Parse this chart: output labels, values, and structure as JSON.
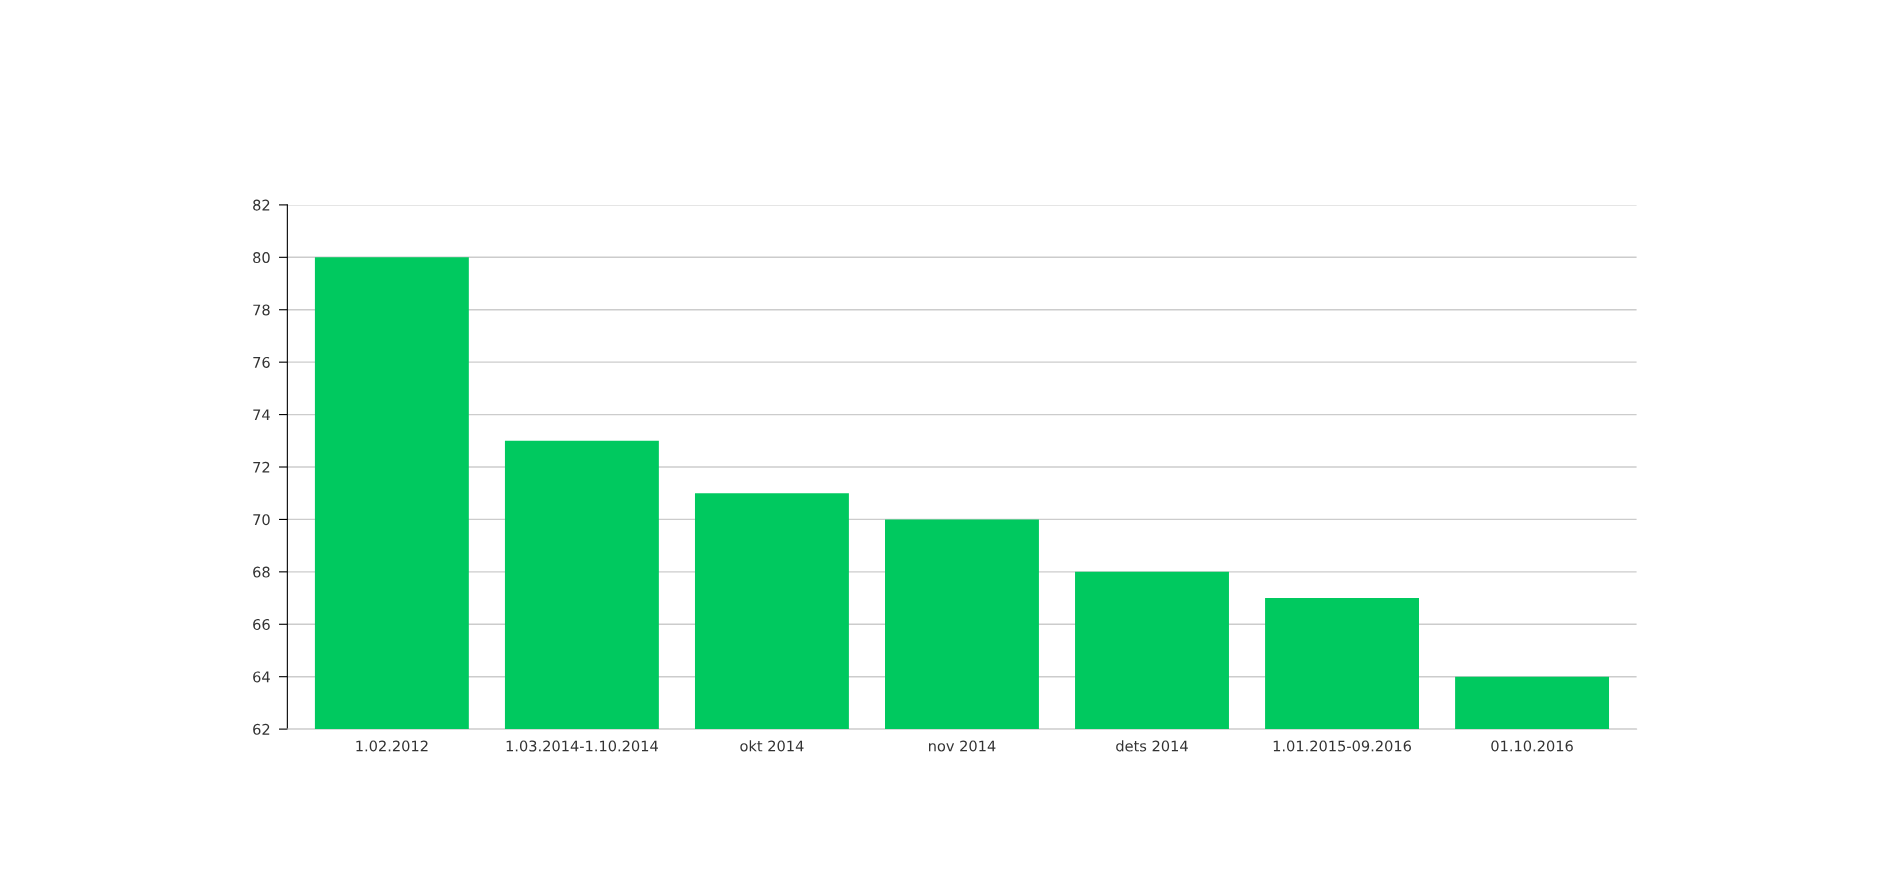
{
  "chart_data": {
    "type": "bar",
    "categories": [
      "1.02.2012",
      "1.03.2014-1.10.2014",
      "okt 2014",
      "nov 2014",
      "dets 2014",
      "1.01.2015-09.2016",
      "01.10.2016"
    ],
    "values": [
      80,
      73,
      71,
      70,
      68,
      67,
      64
    ],
    "color": "#00c95f",
    "ylim": [
      62,
      82
    ],
    "yticks": [
      62,
      64,
      66,
      68,
      70,
      72,
      74,
      76,
      78,
      80,
      82
    ],
    "grid": "y",
    "legend": false
  }
}
